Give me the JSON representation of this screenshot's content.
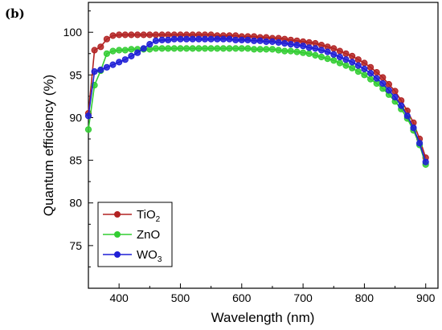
{
  "panel_label": "(b)",
  "chart_data": {
    "type": "line",
    "xlabel": "Wavelength (nm)",
    "ylabel": "Quantum efficiency (%)",
    "xlim": [
      350,
      920
    ],
    "ylim": [
      70,
      103.5
    ],
    "xticks": [
      400,
      500,
      600,
      700,
      800,
      900
    ],
    "yticks": [
      75,
      80,
      85,
      90,
      95,
      100
    ],
    "grid": false,
    "legend_position": "bottom-left",
    "x": [
      350,
      360,
      370,
      380,
      390,
      400,
      410,
      420,
      430,
      440,
      450,
      460,
      470,
      480,
      490,
      500,
      510,
      520,
      530,
      540,
      550,
      560,
      570,
      580,
      590,
      600,
      610,
      620,
      630,
      640,
      650,
      660,
      670,
      680,
      690,
      700,
      710,
      720,
      730,
      740,
      750,
      760,
      770,
      780,
      790,
      800,
      810,
      820,
      830,
      840,
      850,
      860,
      870,
      880,
      890,
      900
    ],
    "series": [
      {
        "name": "TiO2",
        "name_main": "TiO",
        "name_sub": "2",
        "color": "#b22222",
        "values": [
          90.5,
          97.9,
          98.3,
          99.2,
          99.6,
          99.7,
          99.7,
          99.7,
          99.7,
          99.7,
          99.7,
          99.7,
          99.7,
          99.7,
          99.7,
          99.7,
          99.7,
          99.7,
          99.7,
          99.7,
          99.7,
          99.6,
          99.6,
          99.6,
          99.6,
          99.5,
          99.5,
          99.5,
          99.4,
          99.4,
          99.3,
          99.3,
          99.2,
          99.1,
          99.0,
          98.9,
          98.8,
          98.7,
          98.5,
          98.3,
          98.1,
          97.8,
          97.5,
          97.2,
          96.8,
          96.4,
          95.9,
          95.3,
          94.7,
          93.9,
          93.1,
          92.0,
          90.8,
          89.4,
          87.5,
          85.3
        ]
      },
      {
        "name": "ZnO",
        "name_main": "ZnO",
        "name_sub": "",
        "color": "#32cd32",
        "values": [
          88.6,
          93.8,
          95.5,
          97.5,
          97.8,
          97.9,
          97.9,
          98.0,
          98.0,
          98.0,
          98.0,
          98.1,
          98.1,
          98.1,
          98.1,
          98.1,
          98.1,
          98.1,
          98.1,
          98.1,
          98.1,
          98.1,
          98.1,
          98.1,
          98.1,
          98.1,
          98.1,
          98.0,
          98.0,
          98.0,
          98.0,
          97.9,
          97.8,
          97.8,
          97.7,
          97.6,
          97.5,
          97.3,
          97.1,
          96.9,
          96.7,
          96.4,
          96.1,
          95.8,
          95.4,
          95.0,
          94.5,
          94.0,
          93.4,
          92.7,
          91.9,
          91.0,
          89.9,
          88.5,
          86.8,
          84.5
        ]
      },
      {
        "name": "WO3",
        "name_main": "WO",
        "name_sub": "3",
        "color": "#1f1fd6",
        "values": [
          90.2,
          95.4,
          95.6,
          95.9,
          96.2,
          96.5,
          96.8,
          97.2,
          97.6,
          98.1,
          98.6,
          99.0,
          99.1,
          99.1,
          99.2,
          99.2,
          99.2,
          99.2,
          99.2,
          99.2,
          99.2,
          99.2,
          99.2,
          99.2,
          99.1,
          99.1,
          99.1,
          99.0,
          99.0,
          98.9,
          98.9,
          98.8,
          98.7,
          98.6,
          98.5,
          98.4,
          98.2,
          98.1,
          97.9,
          97.7,
          97.4,
          97.1,
          96.8,
          96.5,
          96.1,
          95.7,
          95.2,
          94.6,
          94.0,
          93.2,
          92.4,
          91.4,
          90.2,
          88.8,
          87.0,
          84.8
        ]
      }
    ]
  }
}
